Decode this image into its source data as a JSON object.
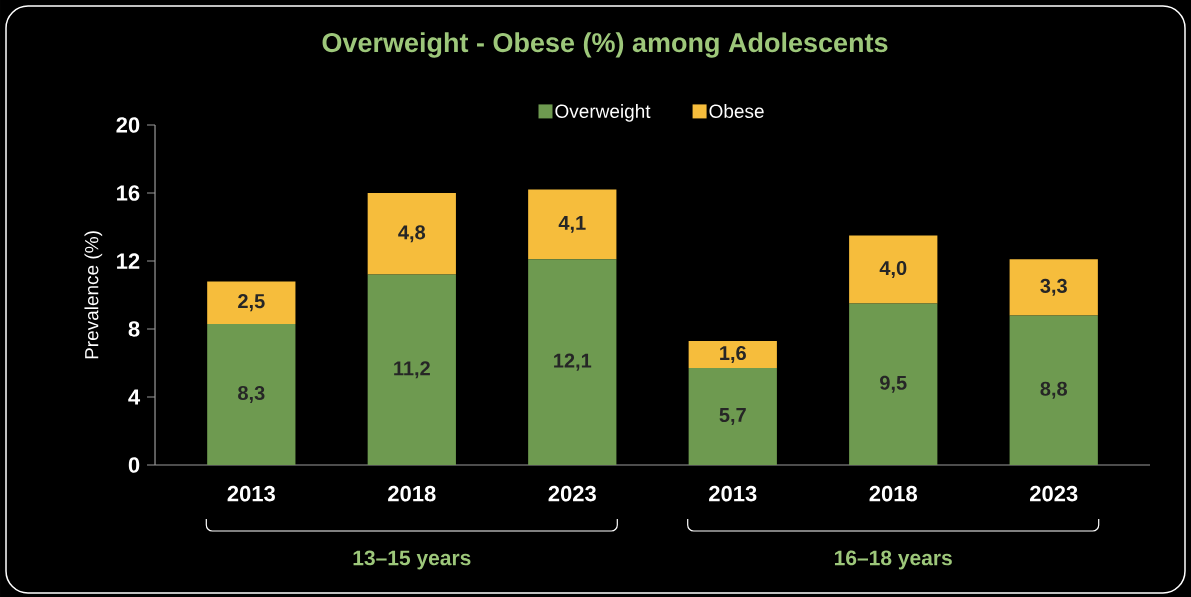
{
  "chart_data": {
    "type": "bar",
    "stacked": true,
    "title": "Overweight - Obese (%) among Adolescents",
    "ylabel": "Prevalence (%)",
    "categories": [
      "2013",
      "2018",
      "2023",
      "2013",
      "2018",
      "2023"
    ],
    "series": [
      {
        "name": "Overweight",
        "color": "#6e9a50",
        "values": [
          8.3,
          11.2,
          12.1,
          5.7,
          9.5,
          8.8
        ],
        "value_labels": [
          "8,3",
          "11,2",
          "12,1",
          "5,7",
          "9,5",
          "8,8"
        ]
      },
      {
        "name": "Obese",
        "color": "#f6bd3c",
        "values": [
          2.5,
          4.8,
          4.1,
          1.6,
          4.0,
          3.3
        ],
        "value_labels": [
          "2,5",
          "4,8",
          "4,1",
          "1,6",
          "4,0",
          "3,3"
        ]
      }
    ],
    "ylim": [
      0,
      20
    ],
    "yticks": [
      0,
      4,
      8,
      12,
      16,
      20
    ],
    "grid": false,
    "legend": "top",
    "annotations": [
      "13–15 years",
      "16–18 years"
    ]
  }
}
